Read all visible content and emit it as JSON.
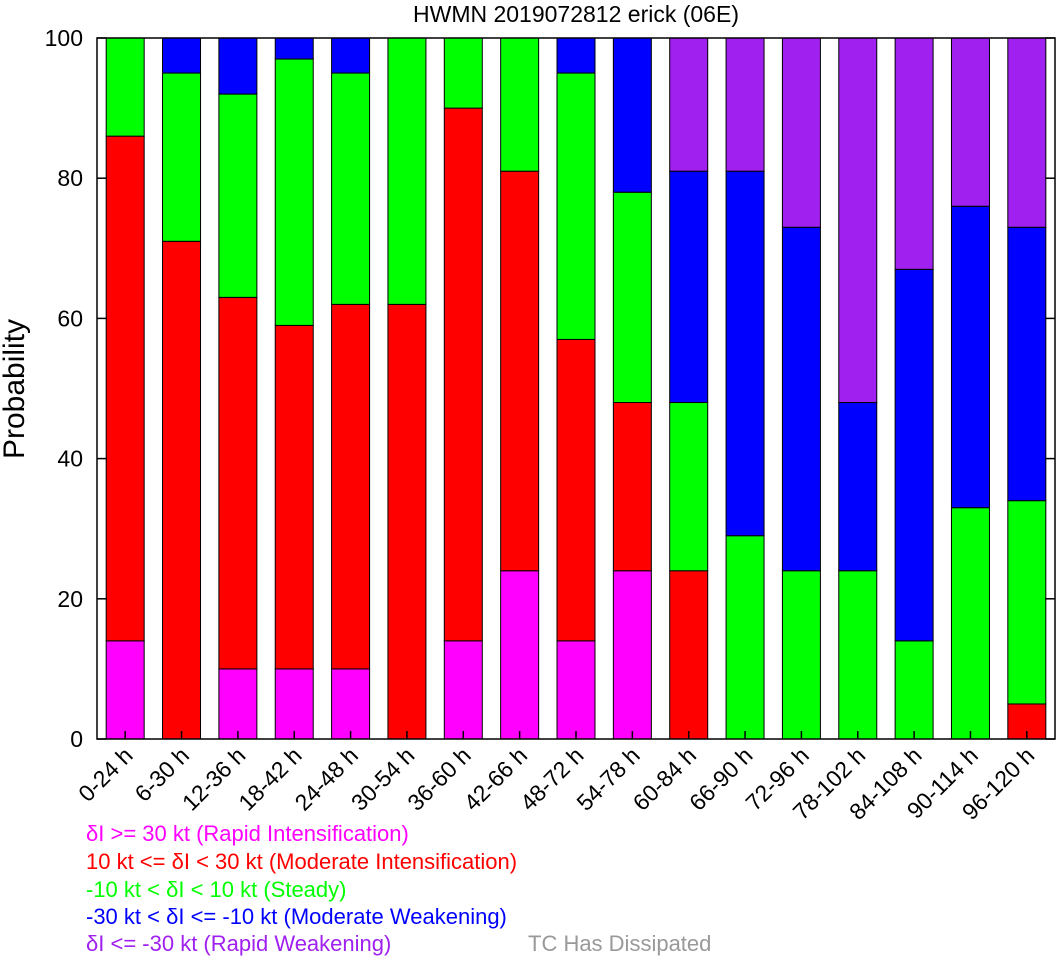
{
  "chart_data": {
    "type": "bar",
    "stacked": true,
    "title": "HWMN 2019072812 erick (06E)",
    "xlabel": "",
    "ylabel": "Probability",
    "ylim": [
      0,
      100
    ],
    "yticks": [
      0,
      20,
      40,
      60,
      80,
      100
    ],
    "grid": false,
    "categories": [
      "0-24 h",
      "6-30 h",
      "12-36 h",
      "18-42 h",
      "24-48 h",
      "30-54 h",
      "36-60 h",
      "42-66 h",
      "48-72 h",
      "54-78 h",
      "60-84 h",
      "66-90 h",
      "72-96 h",
      "78-102 h",
      "84-108 h",
      "90-114 h",
      "96-120 h"
    ],
    "series": [
      {
        "name": "δI >= 30 kt (Rapid Intensification)",
        "color": "#ff00ff",
        "values": [
          14,
          0,
          10,
          10,
          10,
          0,
          14,
          24,
          14,
          24,
          0,
          0,
          0,
          0,
          0,
          0,
          0
        ]
      },
      {
        "name": "10 kt <= δI < 30 kt (Moderate Intensification)",
        "color": "#ff0000",
        "values": [
          72,
          71,
          53,
          49,
          52,
          62,
          76,
          57,
          43,
          24,
          24,
          0,
          0,
          0,
          0,
          0,
          5
        ]
      },
      {
        "name": "-10 kt < δI < 10 kt (Steady)",
        "color": "#00ff00",
        "values": [
          14,
          24,
          29,
          38,
          33,
          38,
          10,
          19,
          38,
          30,
          24,
          29,
          24,
          24,
          14,
          33,
          29
        ]
      },
      {
        "name": "-30 kt < δI <= -10 kt (Moderate Weakening)",
        "color": "#0000ff",
        "values": [
          0,
          5,
          8,
          3,
          5,
          0,
          0,
          0,
          5,
          22,
          33,
          52,
          49,
          24,
          53,
          43,
          39
        ]
      },
      {
        "name": "δI <= -30 kt (Rapid Weakening)",
        "color": "#a020f0",
        "values": [
          0,
          0,
          0,
          0,
          0,
          0,
          0,
          0,
          0,
          0,
          19,
          19,
          27,
          52,
          33,
          24,
          27
        ]
      }
    ],
    "extra_legend": {
      "name": "TC Has Dissipated",
      "color": "#999999"
    }
  },
  "legend": {
    "line1": "δI >= 30 kt (Rapid Intensification)",
    "line2": "10 kt <= δI < 30 kt (Moderate Intensification)",
    "line3": "-10 kt < δI < 10 kt (Steady)",
    "line4": "-30 kt < δI <= -10 kt (Moderate Weakening)",
    "line5": "δI <= -30 kt (Rapid Weakening)",
    "dissipated": "TC Has Dissipated"
  }
}
